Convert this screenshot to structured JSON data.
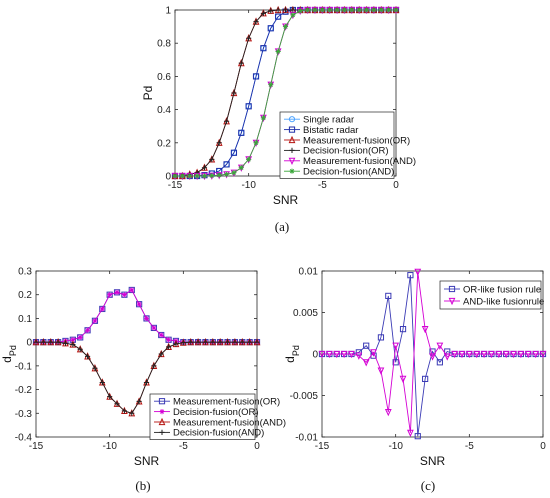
{
  "chart_data": [
    {
      "type": "line",
      "caption": "(a)",
      "xlabel": "SNR",
      "ylabel": "Pd",
      "xlim": [
        -15,
        0
      ],
      "ylim": [
        0,
        1
      ],
      "xticks": [
        -15,
        -10,
        -5,
        0
      ],
      "yticks": [
        0,
        0.2,
        0.4,
        0.6,
        0.8,
        1
      ],
      "legend_position": "bottom-right",
      "x": [
        -15,
        -14.5,
        -14,
        -13.5,
        -13,
        -12.5,
        -12,
        -11.5,
        -11,
        -10.5,
        -10,
        -9.5,
        -9,
        -8.5,
        -8,
        -7.5,
        -7,
        -6.5,
        -6,
        -5.5,
        -5,
        -4.5,
        -4,
        -3.5,
        -3,
        -2.5,
        -2,
        -1.5,
        -1,
        -0.5,
        0
      ],
      "series": [
        {
          "name": "Single radar",
          "color": "#4da3ff",
          "marker": "circle",
          "values": [
            0,
            0,
            0,
            0,
            0.005,
            0.015,
            0.03,
            0.07,
            0.14,
            0.26,
            0.42,
            0.6,
            0.77,
            0.89,
            0.96,
            0.99,
            1,
            1,
            1,
            1,
            1,
            1,
            1,
            1,
            1,
            1,
            1,
            1,
            1,
            1,
            1
          ]
        },
        {
          "name": "Bistatic radar",
          "color": "#1f2fa8",
          "marker": "square",
          "values": [
            0,
            0,
            0,
            0,
            0.005,
            0.015,
            0.03,
            0.07,
            0.14,
            0.26,
            0.42,
            0.6,
            0.77,
            0.89,
            0.96,
            0.99,
            1,
            1,
            1,
            1,
            1,
            1,
            1,
            1,
            1,
            1,
            1,
            1,
            1,
            1,
            1
          ]
        },
        {
          "name": "Measurement-fusion(OR)",
          "color": "#b5120f",
          "marker": "triangle-up",
          "values": [
            0,
            0,
            0.01,
            0.02,
            0.05,
            0.1,
            0.2,
            0.33,
            0.5,
            0.68,
            0.83,
            0.93,
            0.98,
            0.995,
            1,
            1,
            1,
            1,
            1,
            1,
            1,
            1,
            1,
            1,
            1,
            1,
            1,
            1,
            1,
            1,
            1
          ]
        },
        {
          "name": "Decision-fusion(OR)",
          "color": "#222222",
          "marker": "plus",
          "values": [
            0,
            0,
            0.01,
            0.02,
            0.05,
            0.1,
            0.2,
            0.33,
            0.5,
            0.68,
            0.83,
            0.93,
            0.98,
            0.995,
            1,
            1,
            1,
            1,
            1,
            1,
            1,
            1,
            1,
            1,
            1,
            1,
            1,
            1,
            1,
            1,
            1
          ]
        },
        {
          "name": "Measurement-fusion(AND)",
          "color": "#d400d4",
          "marker": "triangle-down",
          "values": [
            0,
            0,
            0,
            0,
            0,
            0.002,
            0.005,
            0.01,
            0.02,
            0.05,
            0.1,
            0.2,
            0.35,
            0.55,
            0.75,
            0.9,
            0.97,
            0.995,
            1,
            1,
            1,
            1,
            1,
            1,
            1,
            1,
            1,
            1,
            1,
            1,
            1
          ]
        },
        {
          "name": "Decision-fusion(AND)",
          "color": "#3aa63a",
          "marker": "asterisk",
          "values": [
            0,
            0,
            0,
            0,
            0,
            0.002,
            0.005,
            0.01,
            0.02,
            0.05,
            0.1,
            0.2,
            0.35,
            0.55,
            0.75,
            0.9,
            0.97,
            0.995,
            1,
            1,
            1,
            1,
            1,
            1,
            1,
            1,
            1,
            1,
            1,
            1,
            1
          ]
        }
      ]
    },
    {
      "type": "line",
      "caption": "(b)",
      "xlabel": "SNR",
      "ylabel": "d",
      "ylabel_sub": "Pd",
      "xlim": [
        -15,
        0
      ],
      "ylim": [
        -0.4,
        0.3
      ],
      "xticks": [
        -15,
        -10,
        -5,
        0
      ],
      "yticks": [
        -0.4,
        -0.3,
        -0.2,
        -0.1,
        0,
        0.1,
        0.2,
        0.3
      ],
      "legend_position": "bottom-right",
      "x": [
        -15,
        -14.5,
        -14,
        -13.5,
        -13,
        -12.5,
        -12,
        -11.5,
        -11,
        -10.5,
        -10,
        -9.5,
        -9,
        -8.5,
        -8,
        -7.5,
        -7,
        -6.5,
        -6,
        -5.5,
        -5,
        -4.5,
        -4,
        -3.5,
        -3,
        -2.5,
        -2,
        -1.5,
        -1,
        -0.5,
        0
      ],
      "series": [
        {
          "name": "Measurement-fusion(OR)",
          "color": "#3b3bb5",
          "marker": "square",
          "values": [
            0,
            0,
            0,
            0,
            0.005,
            0.01,
            0.02,
            0.05,
            0.09,
            0.14,
            0.2,
            0.21,
            0.2,
            0.22,
            0.16,
            0.1,
            0.06,
            0.03,
            0.01,
            0.005,
            0,
            0,
            0,
            0,
            0,
            0,
            0,
            0,
            0,
            0,
            0
          ]
        },
        {
          "name": "Decision-fusion(OR)",
          "color": "#d400d4",
          "marker": "asterisk",
          "values": [
            0,
            0,
            0,
            0,
            0.005,
            0.01,
            0.02,
            0.05,
            0.09,
            0.14,
            0.2,
            0.21,
            0.2,
            0.22,
            0.16,
            0.1,
            0.06,
            0.03,
            0.01,
            0.005,
            0,
            0,
            0,
            0,
            0,
            0,
            0,
            0,
            0,
            0,
            0
          ]
        },
        {
          "name": "Measurement-fusion(AND)",
          "color": "#b5120f",
          "marker": "triangle-up",
          "values": [
            0,
            0,
            0,
            0,
            -0.005,
            -0.01,
            -0.03,
            -0.06,
            -0.11,
            -0.17,
            -0.23,
            -0.26,
            -0.29,
            -0.3,
            -0.25,
            -0.17,
            -0.1,
            -0.05,
            -0.02,
            -0.008,
            -0.002,
            0,
            0,
            0,
            0,
            0,
            0,
            0,
            0,
            0,
            0
          ]
        },
        {
          "name": "Decision-fusion(AND)",
          "color": "#222222",
          "marker": "plus",
          "values": [
            0,
            0,
            0,
            0,
            -0.005,
            -0.01,
            -0.03,
            -0.06,
            -0.11,
            -0.17,
            -0.23,
            -0.26,
            -0.29,
            -0.3,
            -0.25,
            -0.17,
            -0.1,
            -0.05,
            -0.02,
            -0.008,
            -0.002,
            0,
            0,
            0,
            0,
            0,
            0,
            0,
            0,
            0,
            0
          ]
        }
      ]
    },
    {
      "type": "line",
      "caption": "(c)",
      "xlabel": "SNR",
      "ylabel": "d",
      "ylabel_sub": "Pd",
      "xlim": [
        -15,
        0
      ],
      "ylim": [
        -0.01,
        0.01
      ],
      "xticks": [
        -15,
        -10,
        -5,
        0
      ],
      "yticks": [
        -0.01,
        -0.005,
        0,
        0.005,
        0.01
      ],
      "legend_position": "top-right",
      "x": [
        -15,
        -14.5,
        -14,
        -13.5,
        -13,
        -12.5,
        -12,
        -11.5,
        -11,
        -10.5,
        -10,
        -9.5,
        -9,
        -8.5,
        -8,
        -7.5,
        -7,
        -6.5,
        -6,
        -5.5,
        -5,
        -4.5,
        -4,
        -3.5,
        -3,
        -2.5,
        -2,
        -1.5,
        -1,
        -0.5,
        0
      ],
      "series": [
        {
          "name": "OR-like fusion rule",
          "color": "#3b3bb5",
          "marker": "square",
          "values": [
            0,
            0,
            0,
            0,
            0,
            0.0002,
            0.001,
            -0.0002,
            0.002,
            0.007,
            -0.001,
            0.003,
            0.0095,
            -0.0099,
            -0.003,
            0.0003,
            -0.001,
            0.0003,
            0,
            0,
            0,
            0,
            0,
            0,
            0,
            0,
            0,
            0,
            0,
            0,
            0
          ]
        },
        {
          "name": "AND-like fusionrule",
          "color": "#d400d4",
          "marker": "triangle-down",
          "values": [
            0,
            0,
            0,
            0,
            0,
            -0.0002,
            -0.001,
            0.0002,
            -0.002,
            -0.007,
            0.001,
            -0.003,
            -0.0095,
            0.0099,
            0.003,
            -0.0003,
            0.001,
            -0.0003,
            0,
            0,
            0,
            0,
            0,
            0,
            0,
            0,
            0,
            0,
            0,
            0,
            0
          ]
        }
      ]
    }
  ]
}
